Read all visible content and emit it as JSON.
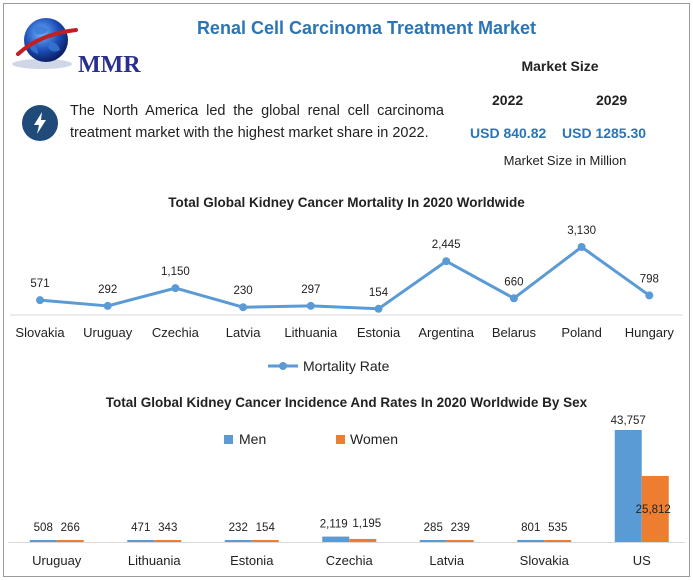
{
  "header": {
    "logo_text": "MMR",
    "title": "Renal Cell Carcinoma Treatment Market"
  },
  "highlight": {
    "icon": "lightning-bolt-icon",
    "text": "The North America led the global renal cell carcinoma treatment market with the highest market share in 2022."
  },
  "market_size": {
    "title": "Market Size",
    "year_1": "2022",
    "year_2": "2029",
    "value_1": "USD 840.82",
    "value_2": "USD 1285.30",
    "unit": "Market Size in Million"
  },
  "colors": {
    "line": "#5b9bd5",
    "men": "#5b9bd5",
    "women": "#ed7d31",
    "accent": "#2b75b6"
  },
  "chart_data": [
    {
      "type": "line",
      "title": "Total Global Kidney Cancer Mortality In 2020 Worldwide",
      "categories": [
        "Slovakia",
        "Uruguay",
        "Czechia",
        "Latvia",
        "Lithuania",
        "Estonia",
        "Argentina",
        "Belarus",
        "Poland",
        "Hungary"
      ],
      "series": [
        {
          "name": "Mortality Rate",
          "values": [
            571,
            292,
            1150,
            230,
            297,
            154,
            2445,
            660,
            3130,
            798
          ]
        }
      ],
      "data_labels": [
        "571",
        "292",
        "1,150",
        "230",
        "297",
        "154",
        "2,445",
        "660",
        "3,130",
        "798"
      ],
      "legend": "bottom",
      "grid": false
    },
    {
      "type": "bar",
      "title": "Total Global Kidney Cancer Incidence And Rates In 2020 Worldwide By Sex",
      "categories": [
        "Uruguay",
        "Lithuania",
        "Estonia",
        "Czechia",
        "Latvia",
        "Slovakia",
        "US"
      ],
      "series": [
        {
          "name": "Men",
          "values": [
            508,
            471,
            232,
            2119,
            285,
            801,
            43757
          ],
          "labels": [
            "508",
            "471",
            "232",
            "2,119",
            "285",
            "801",
            "43,757"
          ]
        },
        {
          "name": "Women",
          "values": [
            266,
            343,
            154,
            1195,
            239,
            535,
            25812
          ],
          "labels": [
            "266",
            "343",
            "154",
            "1,195",
            "239",
            "535",
            "25,812"
          ]
        }
      ],
      "legend": "top",
      "grid": false
    }
  ]
}
